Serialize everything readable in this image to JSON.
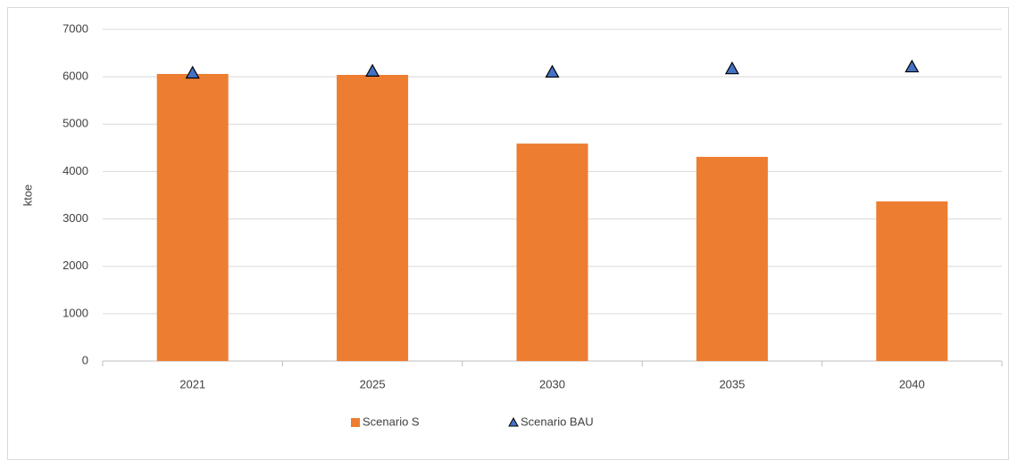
{
  "chart_data": {
    "type": "bar",
    "ylabel": "ktoe",
    "categories": [
      "2021",
      "2025",
      "2030",
      "2035",
      "2040"
    ],
    "series": [
      {
        "name": "Scenario S",
        "color": "#ed7d31",
        "values": [
          6060,
          6040,
          4590,
          4310,
          3370
        ]
      },
      {
        "name": "Scenario BAU",
        "color": "#4472c4",
        "marker": "triangle",
        "values": [
          6080,
          6120,
          6100,
          6170,
          6210
        ]
      }
    ],
    "ylim": [
      0,
      7000
    ],
    "yticks": [
      0,
      1000,
      2000,
      3000,
      4000,
      5000,
      6000,
      7000
    ],
    "grid": true,
    "legend": "bottom"
  }
}
